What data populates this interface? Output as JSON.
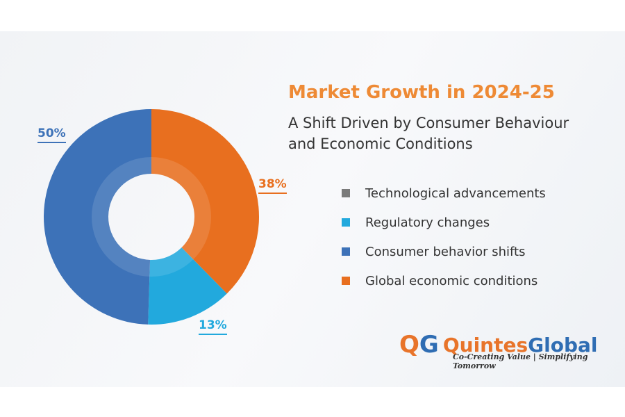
{
  "header": {
    "title": "Market Growth in 2024-25",
    "subtitle_line1": "A Shift Driven by Consumer Behaviour",
    "subtitle_line2": "and Economic Conditions"
  },
  "chart_data": {
    "type": "pie",
    "donut": true,
    "title": "Market Growth in 2024-25",
    "slices": [
      {
        "name": "Technological advancements",
        "value": 0,
        "color": "#7a7a7a"
      },
      {
        "name": "Global economic conditions",
        "value": 38,
        "label": "38%",
        "color": "#e86f1f"
      },
      {
        "name": "Regulatory changes",
        "value": 13,
        "label": "13%",
        "color": "#22a9dd"
      },
      {
        "name": "Consumer behavior shifts",
        "value": 50,
        "label": "50%",
        "color": "#3d72b8"
      }
    ],
    "legend": [
      "Technological advancements",
      "Regulatory changes",
      "Consumer behavior shifts",
      "Global economic conditions"
    ],
    "legend_colors": [
      "#7a7a7a",
      "#22a9dd",
      "#3d72b8",
      "#e86f1f"
    ],
    "legend_placement": "right"
  },
  "logo": {
    "q": "Q",
    "g": "G",
    "name1": "Quintes",
    "name2": "Global",
    "tagline": "Co-Creating Value | Simplifying Tomorrow"
  }
}
